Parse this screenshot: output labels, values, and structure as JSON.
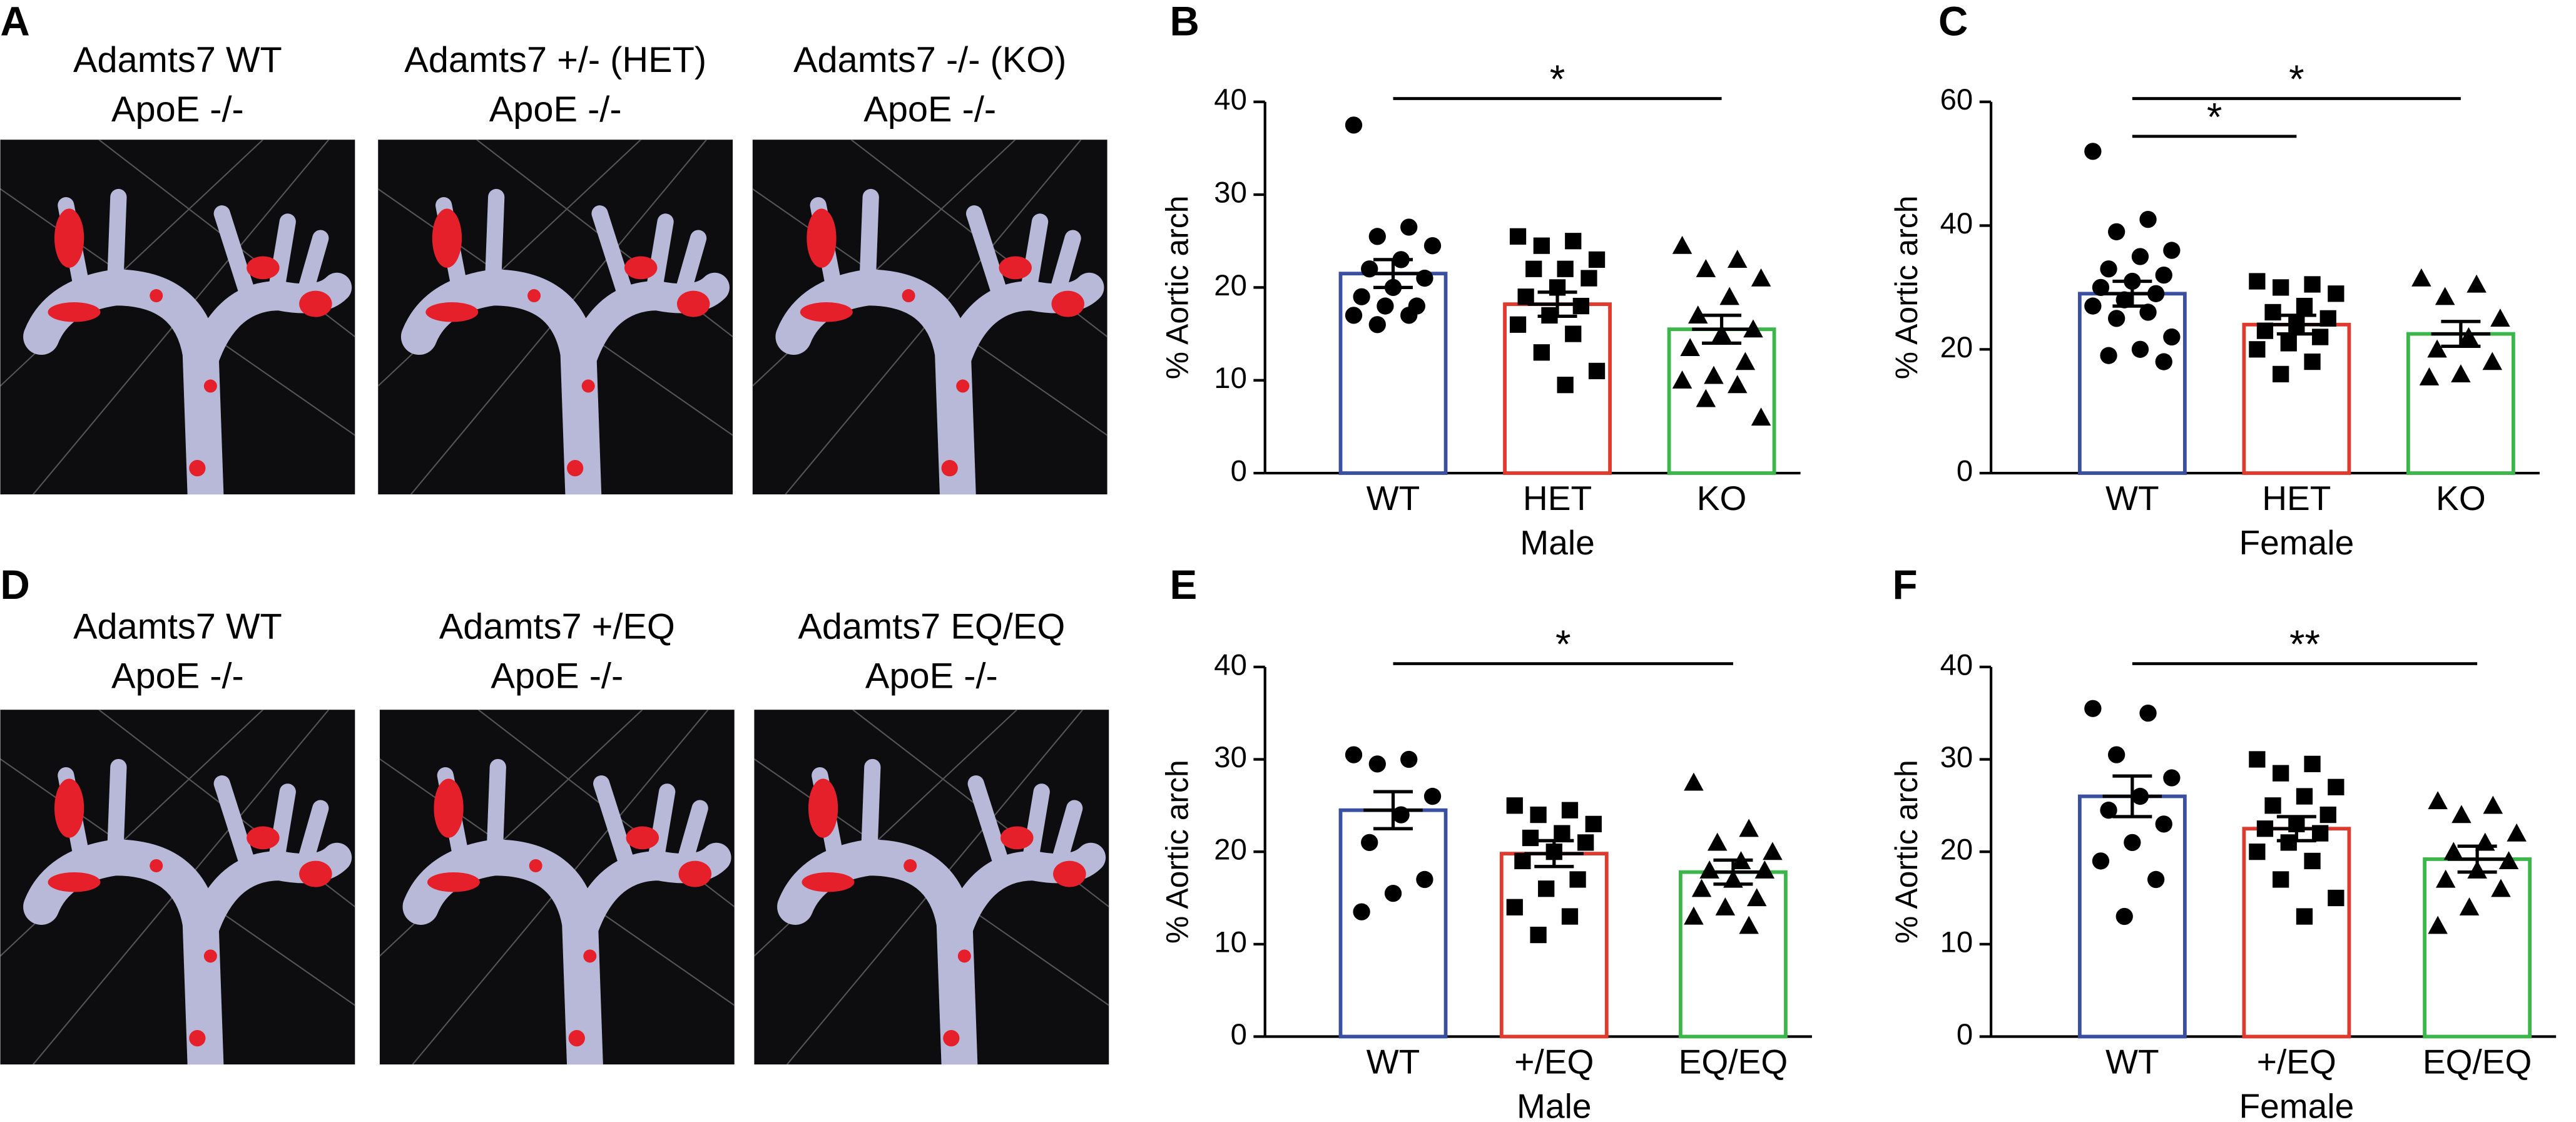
{
  "photo_panels": [
    {
      "label": "A",
      "images": [
        {
          "caption": [
            "Adamts7 WT",
            "ApoE -/-"
          ]
        },
        {
          "caption": [
            "Adamts7 +/- (HET)",
            "ApoE -/-"
          ]
        },
        {
          "caption": [
            "Adamts7 -/- (KO)",
            "ApoE -/-"
          ]
        }
      ]
    },
    {
      "label": "D",
      "images": [
        {
          "caption": [
            "Adamts7 WT",
            "ApoE -/-"
          ]
        },
        {
          "caption": [
            "Adamts7 +/EQ",
            "ApoE -/-"
          ]
        },
        {
          "caption": [
            "Adamts7 EQ/EQ",
            "ApoE -/-"
          ]
        }
      ]
    }
  ],
  "chart_data": [
    {
      "type": "bar",
      "panel_label": "B",
      "ylabel": "% Aortic arch",
      "group_label": "Male",
      "categories": [
        "WT",
        "HET",
        "KO"
      ],
      "values": [
        21.5,
        18.2,
        15.5
      ],
      "errors": [
        1.5,
        1.3,
        1.5
      ],
      "colors": [
        "#3a4fa0",
        "#e03a2f",
        "#3cb54a"
      ],
      "markers": [
        "circle",
        "square",
        "triangle"
      ],
      "points": [
        [
          37.5,
          26.5,
          25.5,
          24.5,
          23,
          22,
          21,
          20,
          19,
          18,
          18,
          17,
          17,
          16
        ],
        [
          25.5,
          25,
          24.5,
          23,
          22,
          22,
          21,
          20,
          19,
          18,
          17,
          16,
          15,
          13,
          11,
          9.5
        ],
        [
          24.5,
          23,
          22,
          21,
          19,
          17,
          15.5,
          15,
          13.5,
          12,
          10.5,
          10,
          9.5,
          8,
          6
        ]
      ],
      "ylim": [
        0,
        40
      ],
      "yticks": [
        0,
        10,
        20,
        30,
        40
      ],
      "comparisons": [
        {
          "between": [
            "WT",
            "KO"
          ],
          "label": "*"
        }
      ]
    },
    {
      "type": "bar",
      "panel_label": "C",
      "ylabel": "% Aortic arch",
      "group_label": "Female",
      "categories": [
        "WT",
        "HET",
        "KO"
      ],
      "values": [
        29,
        24,
        22.5
      ],
      "errors": [
        2,
        1.5,
        2
      ],
      "colors": [
        "#3a4fa0",
        "#e03a2f",
        "#3cb54a"
      ],
      "markers": [
        "circle",
        "square",
        "triangle"
      ],
      "points": [
        [
          52,
          41,
          39,
          36,
          35,
          33,
          32,
          31,
          30,
          29,
          28,
          27,
          26,
          25,
          22,
          20,
          19,
          18
        ],
        [
          31,
          30.5,
          30,
          29,
          27,
          26,
          25,
          24,
          23,
          22,
          21,
          20,
          18,
          16
        ],
        [
          31.5,
          30.5,
          28.5,
          25,
          22,
          20,
          18,
          16,
          15.5
        ]
      ],
      "ylim": [
        0,
        60
      ],
      "yticks": [
        0,
        20,
        40,
        60
      ],
      "comparisons": [
        {
          "between": [
            "WT",
            "KO"
          ],
          "label": "*"
        },
        {
          "between": [
            "WT",
            "HET"
          ],
          "label": "*"
        }
      ]
    },
    {
      "type": "bar",
      "panel_label": "E",
      "ylabel": "% Aortic arch",
      "group_label": "Male",
      "categories": [
        "WT",
        "+/EQ",
        "EQ/EQ"
      ],
      "values": [
        24.5,
        19.8,
        17.8
      ],
      "errors": [
        2,
        1.4,
        1.3
      ],
      "colors": [
        "#3a4fa0",
        "#e03a2f",
        "#3cb54a"
      ],
      "markers": [
        "circle",
        "square",
        "triangle"
      ],
      "points": [
        [
          30.5,
          30,
          29.5,
          26,
          24,
          21,
          17,
          15.5,
          13.5
        ],
        [
          25,
          24.5,
          24,
          23,
          22,
          21.5,
          21,
          20,
          19,
          17,
          16,
          14,
          13,
          11
        ],
        [
          27.5,
          22.5,
          21,
          20,
          19,
          18,
          18,
          17,
          16,
          15,
          14,
          13,
          12
        ]
      ],
      "ylim": [
        0,
        40
      ],
      "yticks": [
        0,
        10,
        20,
        30,
        40
      ],
      "comparisons": [
        {
          "between": [
            "WT",
            "EQ/EQ"
          ],
          "label": "*"
        }
      ]
    },
    {
      "type": "bar",
      "panel_label": "F",
      "ylabel": "% Aortic arch",
      "group_label": "Female",
      "categories": [
        "WT",
        "+/EQ",
        "EQ/EQ"
      ],
      "values": [
        26,
        22.5,
        19.2
      ],
      "errors": [
        2.2,
        1.3,
        1.4
      ],
      "colors": [
        "#3a4fa0",
        "#e03a2f",
        "#3cb54a"
      ],
      "markers": [
        "circle",
        "square",
        "triangle"
      ],
      "points": [
        [
          35.5,
          35,
          30.5,
          28,
          26,
          24.5,
          23,
          21,
          19,
          17,
          13
        ],
        [
          30,
          29.5,
          28.5,
          27,
          26,
          25,
          24,
          23,
          22.5,
          22,
          21,
          20,
          19,
          17,
          15,
          13
        ],
        [
          25.5,
          25,
          24,
          22,
          21,
          20,
          19,
          18,
          17,
          16,
          14,
          12
        ]
      ],
      "ylim": [
        0,
        40
      ],
      "yticks": [
        0,
        10,
        20,
        30,
        40
      ],
      "comparisons": [
        {
          "between": [
            "WT",
            "EQ/EQ"
          ],
          "label": "**"
        }
      ]
    }
  ]
}
